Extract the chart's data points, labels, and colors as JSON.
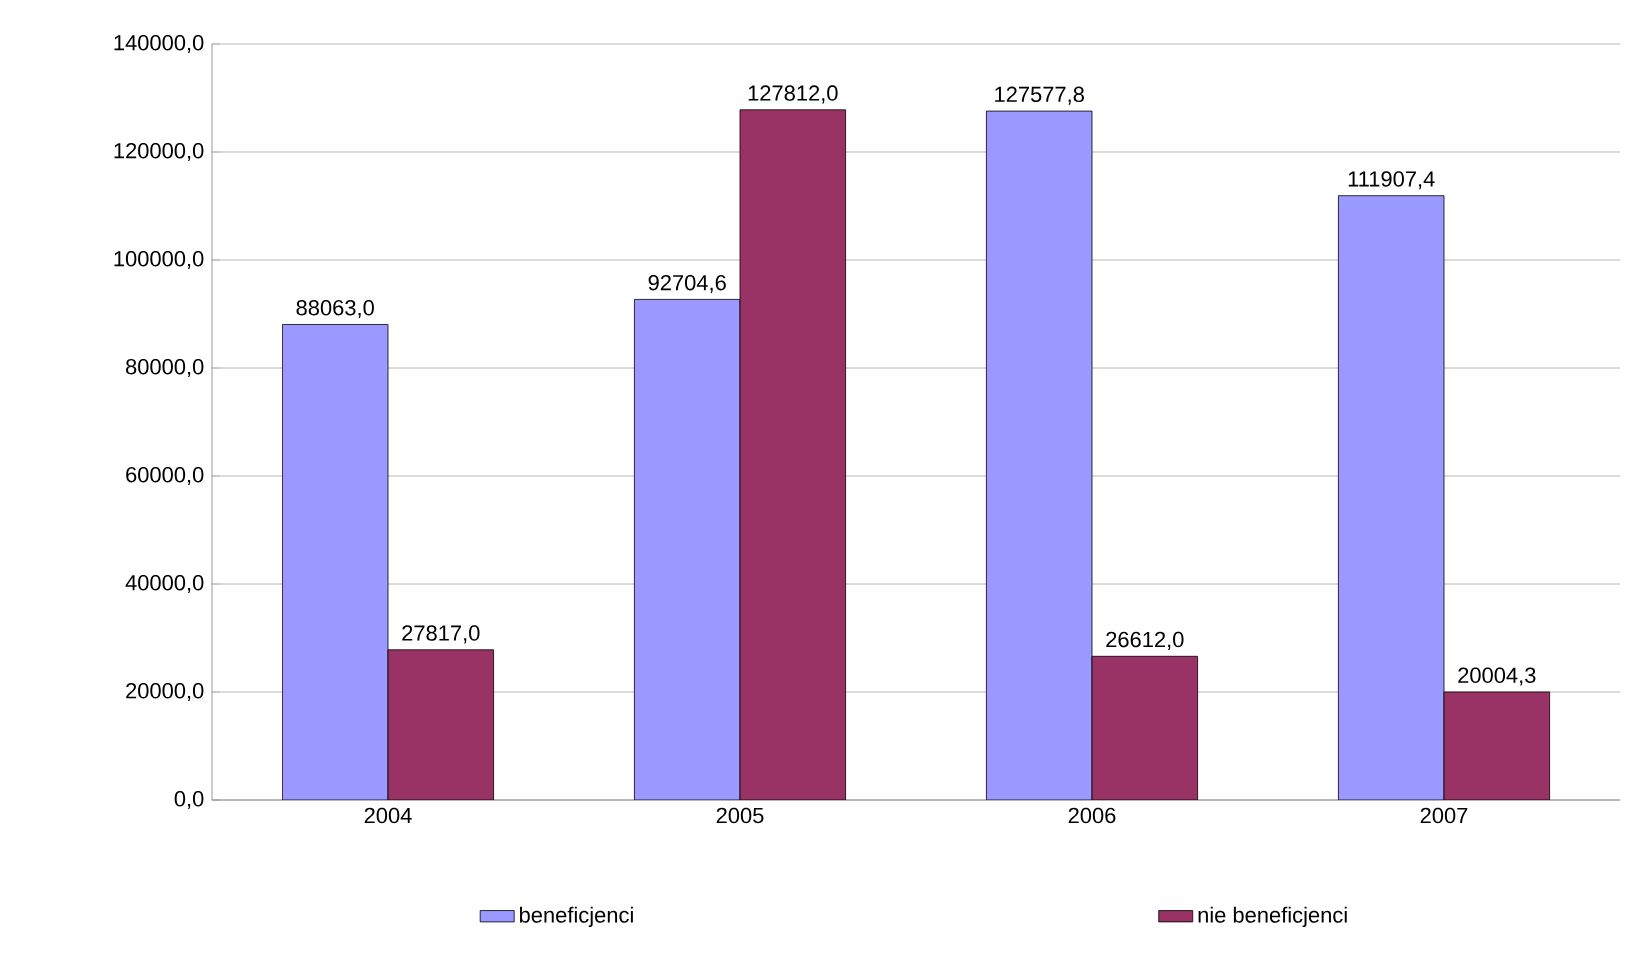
{
  "chart_data": {
    "type": "bar",
    "categories": [
      "2004",
      "2005",
      "2006",
      "2007"
    ],
    "series": [
      {
        "name": "beneficjenci",
        "color": "#9999ff",
        "values": [
          88063.0,
          92704.6,
          127577.8,
          111907.4
        ],
        "value_labels": [
          "88063,0",
          "92704,6",
          "127577,8",
          "111907,4"
        ]
      },
      {
        "name": "nie beneficjenci",
        "color": "#993366",
        "values": [
          27817.0,
          127812.0,
          26612.0,
          20004.3
        ],
        "value_labels": [
          "27817,0",
          "127812,0",
          "26612,0",
          "20004,3"
        ]
      }
    ],
    "ylim": [
      0,
      140000
    ],
    "yticks": [
      {
        "value": 0,
        "label": "0,0"
      },
      {
        "value": 20000,
        "label": "20000,0"
      },
      {
        "value": 40000,
        "label": "40000,0"
      },
      {
        "value": 60000,
        "label": "60000,0"
      },
      {
        "value": 80000,
        "label": "80000,0"
      },
      {
        "value": 100000,
        "label": "100000,0"
      },
      {
        "value": 120000,
        "label": "120000,0"
      },
      {
        "value": 140000,
        "label": "140000,0"
      }
    ],
    "grid": "y",
    "legend": "bottom"
  }
}
